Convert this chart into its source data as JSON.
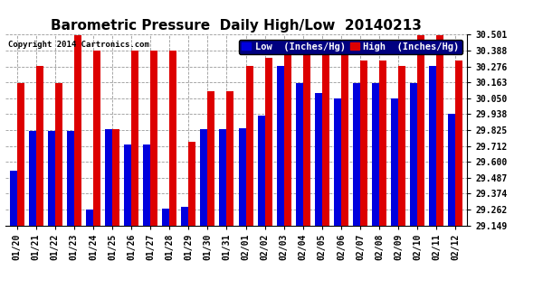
{
  "title": "Barometric Pressure  Daily High/Low  20140213",
  "copyright": "Copyright 2014 Cartronics.com",
  "legend_low": "Low  (Inches/Hg)",
  "legend_high": "High  (Inches/Hg)",
  "dates": [
    "01/20",
    "01/21",
    "01/22",
    "01/23",
    "01/24",
    "01/25",
    "01/26",
    "01/27",
    "01/28",
    "01/29",
    "01/30",
    "01/31",
    "02/01",
    "02/02",
    "02/03",
    "02/04",
    "02/05",
    "02/06",
    "02/07",
    "02/08",
    "02/09",
    "02/10",
    "02/11",
    "02/12"
  ],
  "low_values": [
    29.54,
    29.82,
    29.82,
    29.82,
    29.26,
    29.83,
    29.72,
    29.72,
    29.27,
    29.28,
    29.83,
    29.83,
    29.84,
    29.93,
    30.28,
    30.16,
    30.09,
    30.05,
    30.16,
    30.16,
    30.05,
    30.16,
    30.28,
    29.94
  ],
  "high_values": [
    30.16,
    30.28,
    30.16,
    30.5,
    30.39,
    29.83,
    30.39,
    30.39,
    30.39,
    29.74,
    30.1,
    30.1,
    30.28,
    30.34,
    30.39,
    30.39,
    30.39,
    30.39,
    30.32,
    30.32,
    30.28,
    30.5,
    30.5,
    30.32
  ],
  "ymin": 29.149,
  "ymax": 30.501,
  "yticks": [
    29.149,
    29.262,
    29.374,
    29.487,
    29.6,
    29.712,
    29.825,
    29.938,
    30.05,
    30.163,
    30.276,
    30.388,
    30.501
  ],
  "bar_width": 0.38,
  "low_color": "#0000dd",
  "high_color": "#dd0000",
  "bg_color": "#ffffff",
  "grid_color": "#999999",
  "title_fontsize": 11,
  "tick_fontsize": 7,
  "legend_fontsize": 7.5
}
